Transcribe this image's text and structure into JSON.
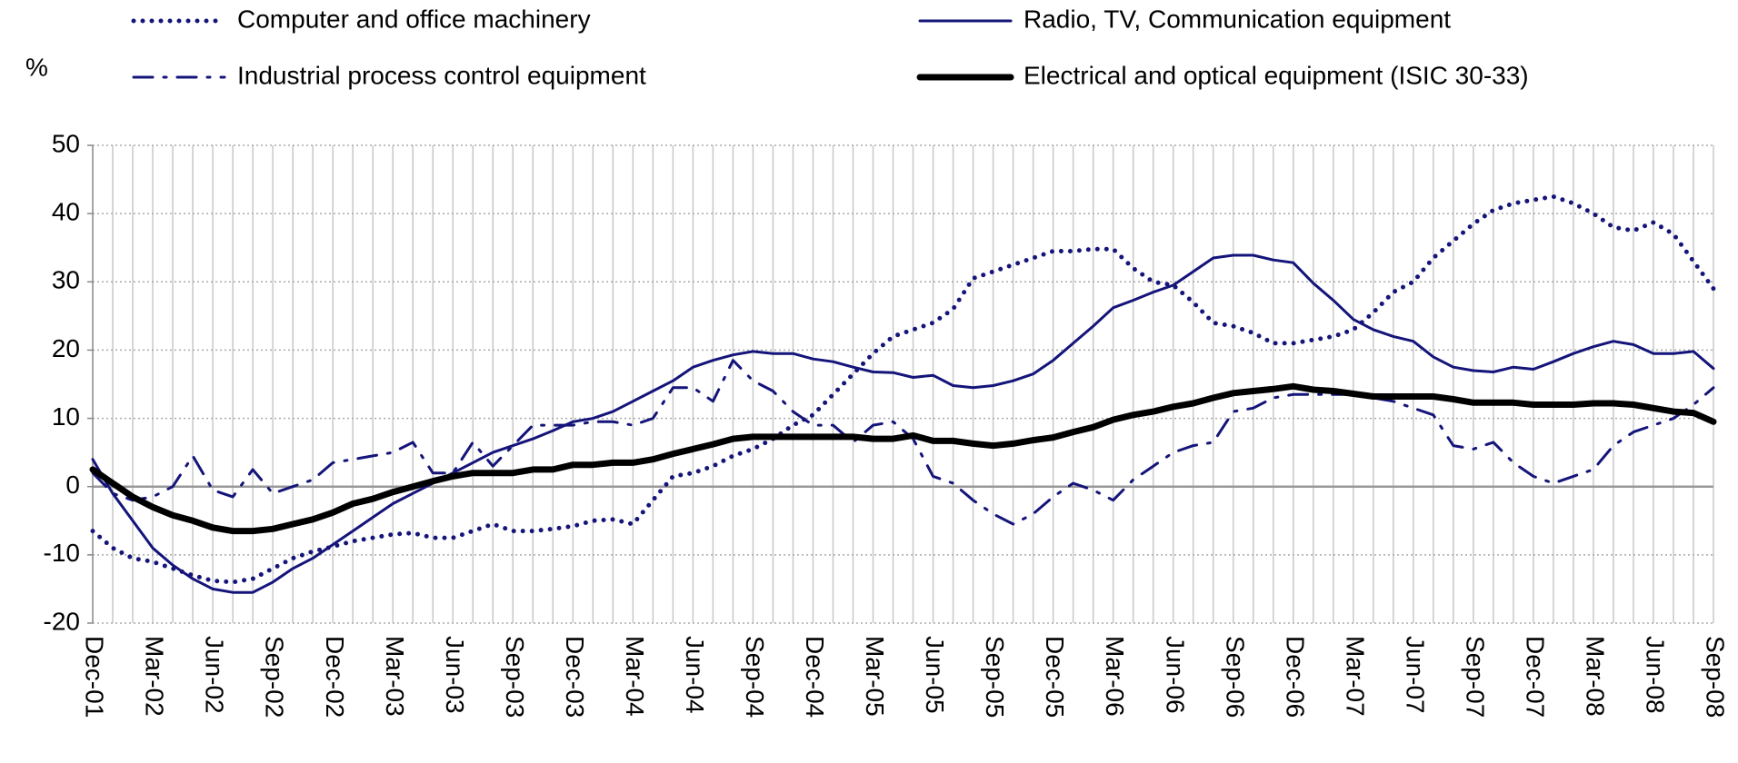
{
  "chart_data": {
    "type": "line",
    "y_label": "%",
    "categories": [
      "Dec-01",
      null,
      null,
      "Mar-02",
      null,
      null,
      "Jun-02",
      null,
      null,
      "Sep-02",
      null,
      null,
      "Dec-02",
      null,
      null,
      "Mar-03",
      null,
      null,
      "Jun-03",
      null,
      null,
      "Sep-03",
      null,
      null,
      "Dec-03",
      null,
      null,
      "Mar-04",
      null,
      null,
      "Jun-04",
      null,
      null,
      "Sep-04",
      null,
      null,
      "Dec-04",
      null,
      null,
      "Mar-05",
      null,
      null,
      "Jun-05",
      null,
      null,
      "Sep-05",
      null,
      null,
      "Dec-05",
      null,
      null,
      "Mar-06",
      null,
      null,
      "Jun-06",
      null,
      null,
      "Sep-06",
      null,
      null,
      "Dec-06",
      null,
      null,
      "Mar-07",
      null,
      null,
      "Jun-07",
      null,
      null,
      "Sep-07",
      null,
      null,
      "Dec-07",
      null,
      null,
      "Mar-08",
      null,
      null,
      "Jun-08",
      null,
      null,
      "Sep-08"
    ],
    "series": [
      {
        "name": "Computer and office machinery",
        "color": "#14147a",
        "style": "dotted",
        "width": 5,
        "values": [
          -6.5,
          -9,
          -10.5,
          -11,
          -12,
          -13,
          -13.8,
          -14,
          -13.5,
          -12,
          -10.5,
          -9.5,
          -8.8,
          -8,
          -7.5,
          -7,
          -6.8,
          -7.5,
          -7.5,
          -6.5,
          -5.5,
          -6.5,
          -6.5,
          -6.2,
          -5.8,
          -5,
          -4.8,
          -5.5,
          -2,
          1.5,
          2,
          3,
          4.5,
          5.5,
          7,
          9,
          10.5,
          13.5,
          16.5,
          19.5,
          22,
          23,
          24,
          26,
          30.5,
          31.5,
          32.5,
          33.5,
          34.5,
          34.5,
          34.8,
          34.8,
          32,
          30,
          29.5,
          27,
          24,
          23.5,
          22.5,
          21,
          21,
          21.5,
          22,
          23,
          25.5,
          28.5,
          30,
          33.5,
          36,
          38.5,
          40.5,
          41.5,
          42,
          42.5,
          41.5,
          40,
          38,
          37.5,
          38.7,
          37,
          33,
          29
        ]
      },
      {
        "name": "Radio, TV, Communication equipment",
        "color": "#14147a",
        "style": "solid",
        "width": 3,
        "values": [
          4,
          -1,
          -5,
          -9,
          -11.5,
          -13.5,
          -15,
          -15.5,
          -15.5,
          -14,
          -12,
          -10.5,
          -8.5,
          -6.5,
          -4.5,
          -2.5,
          -1,
          0.5,
          2,
          3.5,
          5,
          6,
          7,
          8.2,
          9.5,
          10,
          11,
          12.5,
          14,
          15.5,
          17.5,
          18.5,
          19.3,
          19.8,
          19.5,
          19.5,
          18.7,
          18.3,
          17.5,
          16.8,
          16.7,
          16,
          16.3,
          14.8,
          14.5,
          14.8,
          15.5,
          16.5,
          18.5,
          21,
          23.5,
          26.2,
          27.3,
          28.5,
          29.5,
          31.5,
          33.5,
          33.9,
          33.9,
          33.2,
          32.8,
          29.8,
          27.3,
          24.5,
          23,
          22,
          21.3,
          19,
          17.5,
          17,
          16.8,
          17.5,
          17.2,
          18.3,
          19.5,
          20.5,
          21.3,
          20.8,
          19.5,
          19.5,
          19.8,
          17.3
        ]
      },
      {
        "name": "Industrial process control equipment",
        "color": "#14147a",
        "style": "dashdot",
        "width": 3,
        "values": [
          2,
          -1,
          -2,
          -1.5,
          0,
          4.5,
          -0.5,
          -1.5,
          2.5,
          -1,
          0,
          1,
          3.5,
          4,
          4.5,
          5,
          6.5,
          2,
          2,
          6.5,
          3,
          6,
          9,
          9,
          9,
          9.5,
          9.5,
          9,
          10,
          14.5,
          14.5,
          12.5,
          18.5,
          15.5,
          14,
          11,
          9,
          9,
          6.5,
          9,
          9.5,
          7,
          1.5,
          0.5,
          -2,
          -4,
          -5.5,
          -4,
          -1.5,
          0.5,
          -0.5,
          -2,
          1,
          3,
          5,
          6,
          6.5,
          11,
          11.5,
          13,
          13.5,
          13.5,
          13.5,
          13.5,
          13,
          12.5,
          11.5,
          10.5,
          6,
          5.5,
          6.5,
          3.5,
          1.5,
          0.5,
          1.5,
          2.5,
          6,
          8,
          9,
          10,
          12,
          14.5
        ]
      },
      {
        "name": "Electrical and optical equipment (ISIC 30-33)",
        "color": "#000000",
        "style": "solid",
        "width": 7,
        "values": [
          2.5,
          0.5,
          -1.5,
          -3,
          -4.2,
          -5,
          -6,
          -6.5,
          -6.5,
          -6.2,
          -5.5,
          -4.8,
          -3.8,
          -2.5,
          -1.8,
          -0.8,
          0,
          0.8,
          1.5,
          2,
          2,
          2,
          2.5,
          2.5,
          3.2,
          3.2,
          3.5,
          3.5,
          4,
          4.8,
          5.5,
          6.2,
          7,
          7.3,
          7.3,
          7.3,
          7.3,
          7.3,
          7.3,
          7,
          7,
          7.5,
          6.7,
          6.7,
          6.3,
          6,
          6.3,
          6.8,
          7.2,
          8,
          8.7,
          9.8,
          10.5,
          11,
          11.7,
          12.2,
          13,
          13.7,
          14,
          14.3,
          14.7,
          14.2,
          14,
          13.6,
          13.2,
          13.2,
          13.2,
          13.2,
          12.8,
          12.3,
          12.3,
          12.3,
          12,
          12,
          12,
          12.2,
          12.2,
          12,
          11.5,
          11,
          10.8,
          9.5
        ]
      }
    ],
    "ylim": [
      -20,
      50
    ],
    "yticks": [
      -20,
      -10,
      0,
      10,
      20,
      30,
      40,
      50
    ],
    "grid": true,
    "legend": "top"
  }
}
